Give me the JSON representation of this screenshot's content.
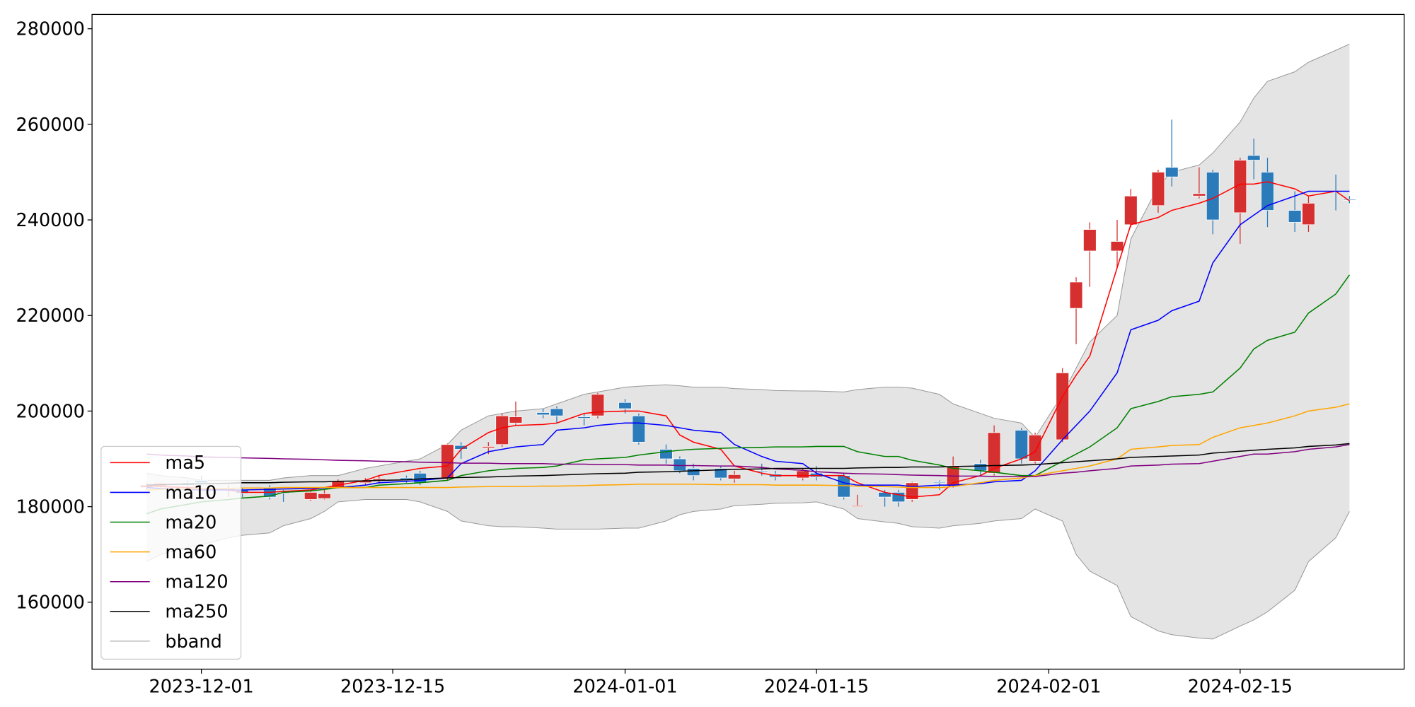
{
  "chart_data": {
    "type": "candlestick",
    "x": [
      "2023-11-27",
      "2023-11-28",
      "2023-11-30",
      "2023-12-01",
      "2023-12-03",
      "2023-12-04",
      "2023-12-06",
      "2023-12-07",
      "2023-12-09",
      "2023-12-10",
      "2023-12-11",
      "2023-12-13",
      "2023-12-14",
      "2023-12-16",
      "2023-12-17",
      "2023-12-19",
      "2023-12-20",
      "2023-12-22",
      "2023-12-23",
      "2023-12-24",
      "2023-12-26",
      "2023-12-27",
      "2023-12-29",
      "2023-12-30",
      "2024-01-01",
      "2024-01-02",
      "2024-01-04",
      "2024-01-05",
      "2024-01-06",
      "2024-01-08",
      "2024-01-09",
      "2024-01-11",
      "2024-01-12",
      "2024-01-14",
      "2024-01-15",
      "2024-01-17",
      "2024-01-18",
      "2024-01-20",
      "2024-01-21",
      "2024-01-22",
      "2024-01-24",
      "2024-01-25",
      "2024-01-27",
      "2024-01-28",
      "2024-01-30",
      "2024-01-31",
      "2024-02-02",
      "2024-02-03",
      "2024-02-04",
      "2024-02-06",
      "2024-02-07",
      "2024-02-09",
      "2024-02-10",
      "2024-02-12",
      "2024-02-13",
      "2024-02-15",
      "2024-02-16",
      "2024-02-17",
      "2024-02-19",
      "2024-02-20",
      "2024-02-22",
      "2024-02-23"
    ],
    "open": [
      184000,
      184300,
      185000,
      185500,
      183500,
      183500,
      184000,
      183000,
      181500,
      181700,
      184000,
      185000,
      185500,
      186000,
      187000,
      186000,
      192800,
      192300,
      193000,
      197500,
      199700,
      200500,
      198800,
      199000,
      201800,
      199000,
      192000,
      190000,
      188000,
      188000,
      185800,
      187500,
      186800,
      186000,
      187000,
      186500,
      180000,
      183000,
      183000,
      181500,
      185200,
      184500,
      189000,
      187000,
      196000,
      189500,
      194000,
      221500,
      233500,
      233500,
      239000,
      243000,
      251000,
      245000,
      250000,
      241500,
      253500,
      250000,
      242000,
      239000,
      246000,
      244300
    ],
    "high": [
      185000,
      185000,
      185500,
      186500,
      184500,
      184000,
      184500,
      183500,
      183500,
      183500,
      185700,
      186000,
      186500,
      186500,
      187500,
      193200,
      193500,
      193500,
      199500,
      202000,
      200500,
      201000,
      199500,
      203800,
      202500,
      199500,
      193000,
      190500,
      189000,
      188500,
      187500,
      189000,
      187500,
      188000,
      188500,
      187000,
      182500,
      183500,
      183500,
      185200,
      185500,
      190500,
      189800,
      197000,
      196500,
      195500,
      209000,
      228000,
      239500,
      240000,
      246500,
      250500,
      261000,
      251000,
      250500,
      253000,
      257000,
      253000,
      246000,
      245000,
      249500,
      245000
    ],
    "low": [
      183500,
      184000,
      184000,
      184500,
      182000,
      182000,
      181500,
      181000,
      181200,
      181500,
      183800,
      184500,
      185000,
      185000,
      184500,
      185500,
      190000,
      191000,
      192500,
      197000,
      198500,
      197500,
      197000,
      198500,
      199500,
      193000,
      189000,
      187000,
      185500,
      185500,
      185000,
      186500,
      185500,
      185500,
      185500,
      181500,
      180000,
      180000,
      180000,
      181000,
      183500,
      184000,
      186500,
      186500,
      189000,
      189000,
      193500,
      214000,
      226000,
      230000,
      238500,
      241500,
      247000,
      244500,
      237000,
      235000,
      248500,
      238500,
      237500,
      237500,
      242000,
      243500
    ],
    "close": [
      184500,
      184900,
      184500,
      185000,
      183800,
      182800,
      182000,
      182800,
      183000,
      182700,
      185300,
      185500,
      185800,
      185500,
      185000,
      193000,
      192000,
      192600,
      199000,
      198800,
      199200,
      199000,
      198500,
      203500,
      200500,
      193500,
      190000,
      187500,
      186500,
      186000,
      186700,
      187300,
      186200,
      187500,
      186200,
      182000,
      180200,
      182000,
      181000,
      185000,
      185000,
      188500,
      187500,
      195500,
      190000,
      195000,
      208000,
      227000,
      238000,
      235500,
      245000,
      250000,
      249000,
      245500,
      240000,
      252500,
      252500,
      242000,
      239500,
      243500,
      245800,
      244200
    ],
    "up_color": "#d62f2f",
    "down_color": "#2b7bba",
    "series": [
      {
        "name": "ma5",
        "color": "#ff0000",
        "values": [
          184500,
          184200,
          184000,
          183800,
          183500,
          183000,
          183000,
          183200,
          183500,
          184000,
          184500,
          185500,
          186500,
          187500,
          188000,
          188500,
          192000,
          195500,
          196500,
          197000,
          197200,
          197500,
          199500,
          199800,
          200000,
          200000,
          199000,
          195000,
          193500,
          192000,
          188500,
          187000,
          186500,
          186500,
          186500,
          186500,
          185000,
          183000,
          182500,
          182000,
          182500,
          185000,
          186500,
          188000,
          190000,
          191500,
          203000,
          207500,
          211500,
          230000,
          239000,
          240500,
          242000,
          243500,
          244500,
          247500,
          247500,
          248000,
          246500,
          245000,
          246000,
          244000
        ]
      },
      {
        "name": "ma10",
        "color": "#0000ff",
        "values": [
          184000,
          183800,
          183600,
          183500,
          183500,
          183500,
          183600,
          183700,
          183800,
          183900,
          184000,
          184500,
          185000,
          185300,
          185500,
          186000,
          189000,
          191500,
          192000,
          192500,
          193000,
          196000,
          196500,
          197000,
          197500,
          197500,
          197000,
          196500,
          196000,
          195500,
          193000,
          190500,
          189500,
          189000,
          187000,
          185000,
          184500,
          184500,
          184500,
          184200,
          184500,
          184500,
          184800,
          185200,
          185500,
          187500,
          194000,
          197000,
          200000,
          208000,
          217000,
          219000,
          221000,
          223000,
          231000,
          239000,
          241000,
          243000,
          245000,
          246000,
          246000,
          246000
        ]
      },
      {
        "name": "ma20",
        "color": "#008000",
        "values": [
          178500,
          179500,
          180500,
          181000,
          181500,
          181800,
          182200,
          183000,
          183300,
          183600,
          184000,
          184000,
          184500,
          184800,
          185000,
          185500,
          186500,
          187500,
          187800,
          188000,
          188200,
          188500,
          189800,
          190000,
          190300,
          190800,
          191500,
          191800,
          192000,
          192200,
          192300,
          192400,
          192500,
          192500,
          192600,
          192600,
          191500,
          190500,
          190500,
          189700,
          188700,
          188000,
          187500,
          187200,
          186500,
          186500,
          189500,
          191000,
          192500,
          196500,
          200500,
          202000,
          203000,
          203500,
          204000,
          209000,
          213000,
          214800,
          216500,
          220500,
          224500,
          228500
        ]
      },
      {
        "name": "ma60",
        "color": "#ffa500",
        "values": [
          183500,
          183600,
          183700,
          183800,
          183800,
          183900,
          183900,
          184000,
          184000,
          184000,
          184000,
          184000,
          184000,
          184000,
          184000,
          184000,
          184100,
          184200,
          184200,
          184200,
          184300,
          184300,
          184400,
          184500,
          184600,
          184700,
          184700,
          184700,
          184700,
          184600,
          184600,
          184600,
          184500,
          184500,
          184500,
          184400,
          184300,
          184200,
          184100,
          184000,
          184000,
          184200,
          185000,
          185500,
          186000,
          186500,
          187500,
          188000,
          188500,
          190000,
          192000,
          192500,
          192800,
          193000,
          194500,
          196500,
          197000,
          197500,
          199000,
          200000,
          200800,
          201500
        ]
      },
      {
        "name": "ma120",
        "color": "#800080",
        "values": [
          191000,
          190800,
          190600,
          190400,
          190300,
          190200,
          190100,
          190000,
          189900,
          189800,
          189700,
          189600,
          189500,
          189400,
          189300,
          189200,
          189100,
          189100,
          189000,
          189000,
          189000,
          188900,
          188900,
          188800,
          188800,
          188700,
          188700,
          188600,
          188600,
          188500,
          188500,
          188200,
          187900,
          187600,
          187300,
          187000,
          186900,
          186800,
          186700,
          186600,
          186500,
          186400,
          186400,
          186300,
          186300,
          186300,
          187000,
          187200,
          187500,
          188000,
          188500,
          188700,
          188900,
          189000,
          189500,
          190500,
          191000,
          191000,
          191500,
          192000,
          192500,
          193000
        ]
      },
      {
        "name": "ma250",
        "color": "#000000",
        "values": [
          184500,
          184600,
          184700,
          184800,
          184900,
          185000,
          185000,
          185100,
          185200,
          185200,
          185300,
          185400,
          185500,
          185600,
          185800,
          186000,
          186100,
          186200,
          186300,
          186400,
          186500,
          186600,
          186800,
          186900,
          187000,
          187200,
          187300,
          187400,
          187500,
          187700,
          187800,
          187900,
          188000,
          188000,
          188000,
          188000,
          188100,
          188200,
          188200,
          188300,
          188300,
          188400,
          188500,
          188600,
          188700,
          188800,
          189200,
          189400,
          189600,
          190000,
          190300,
          190500,
          190600,
          190800,
          191200,
          191600,
          191800,
          192000,
          192300,
          192600,
          192900,
          193200
        ]
      }
    ],
    "band": {
      "name": "bband",
      "color": "#999999",
      "fill": "#e4e4e4",
      "upper": [
        187000,
        186500,
        186000,
        185500,
        185500,
        185500,
        185500,
        186000,
        186500,
        186500,
        186500,
        188000,
        188500,
        189500,
        190000,
        193000,
        196000,
        199000,
        199500,
        200000,
        200500,
        201500,
        203500,
        204000,
        205000,
        205200,
        205500,
        205300,
        205000,
        205000,
        204700,
        204500,
        204300,
        204200,
        204200,
        204000,
        204500,
        205000,
        205000,
        204800,
        203500,
        201500,
        199500,
        198500,
        197500,
        194500,
        203500,
        209000,
        214500,
        220000,
        236000,
        247000,
        250000,
        251500,
        254000,
        260500,
        265500,
        269000,
        271000,
        273000,
        275500,
        276800
      ],
      "lower": [
        168500,
        170000,
        171500,
        172000,
        173500,
        174000,
        174500,
        176000,
        177500,
        179000,
        181000,
        181500,
        181500,
        181500,
        181000,
        179000,
        177000,
        176000,
        175800,
        175800,
        175500,
        175300,
        175300,
        175300,
        175500,
        175500,
        177000,
        178300,
        179000,
        179500,
        180200,
        180500,
        180700,
        180800,
        181000,
        179500,
        177500,
        176800,
        176500,
        175800,
        175500,
        176000,
        176500,
        177000,
        177500,
        179500,
        177000,
        170000,
        166500,
        163500,
        157000,
        154000,
        153200,
        152500,
        152300,
        155000,
        156300,
        158000,
        162500,
        168500,
        173500,
        179000
      ]
    },
    "xlim": [
      "2023-11-23",
      "2024-02-27"
    ],
    "xticks": [
      "2023-12-01",
      "2023-12-15",
      "2024-01-01",
      "2024-01-15",
      "2024-02-01",
      "2024-02-15"
    ],
    "ylim": [
      146000,
      283000
    ],
    "yticks": [
      160000,
      180000,
      200000,
      220000,
      240000,
      260000,
      280000
    ],
    "legend": "lower left"
  }
}
